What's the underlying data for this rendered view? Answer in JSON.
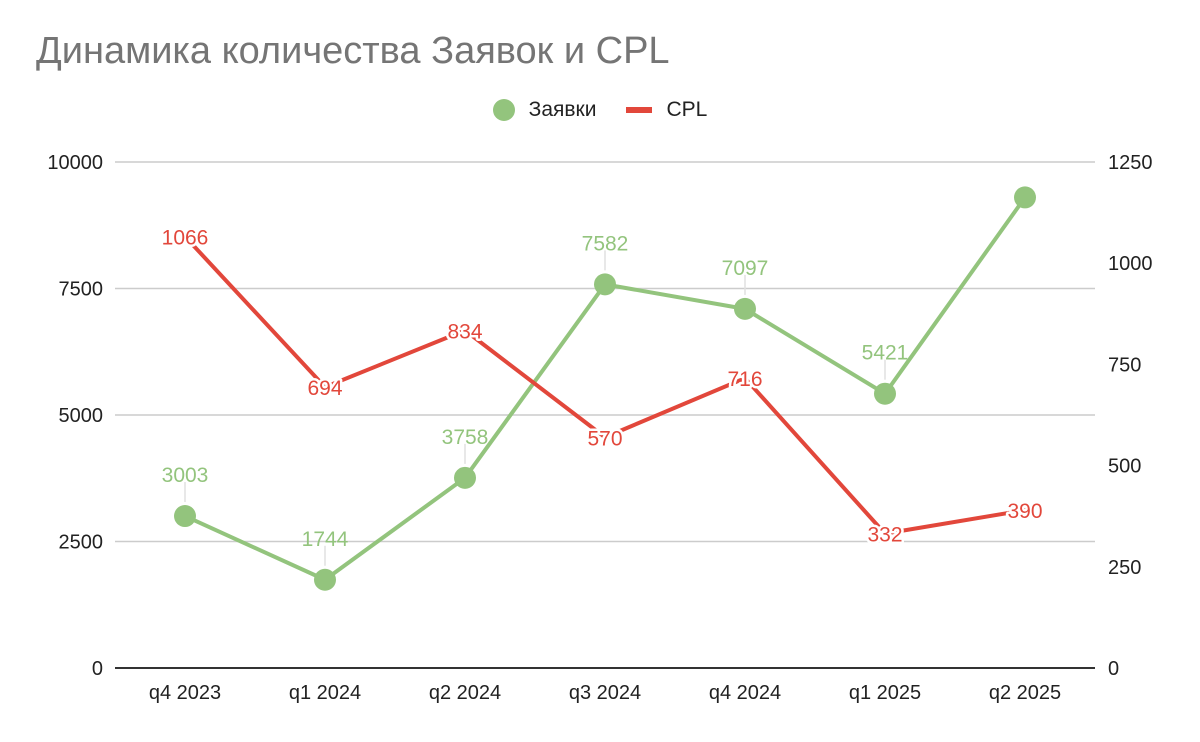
{
  "chart_data": {
    "type": "line",
    "title": "Динамика количества Заявок и CPL",
    "categories": [
      "q4 2023",
      "q1 2024",
      "q2 2024",
      "q3 2024",
      "q4 2024",
      "q1 2025",
      "q2 2025"
    ],
    "series": [
      {
        "name": "Заявки",
        "axis": "left",
        "color": "#93c47d",
        "markers": true,
        "values": [
          3003,
          1744,
          3758,
          7582,
          7097,
          5421,
          9300
        ],
        "data_labels": [
          "3003",
          "1744",
          "3758",
          "7582",
          "7097",
          "5421",
          null
        ]
      },
      {
        "name": "CPL",
        "axis": "right",
        "color": "#e2473b",
        "markers": false,
        "values": [
          1066,
          694,
          834,
          570,
          716,
          332,
          390
        ],
        "data_labels": [
          "1066",
          "694",
          "834",
          "570",
          "716",
          "332",
          "390"
        ]
      }
    ],
    "y_left": {
      "min": 0,
      "max": 10000,
      "ticks": [
        "0",
        "2500",
        "5000",
        "7500",
        "10000"
      ]
    },
    "y_right": {
      "min": 0,
      "max": 1250,
      "ticks": [
        "0",
        "250",
        "500",
        "750",
        "1000",
        "1250"
      ]
    },
    "grid": true,
    "legend_position": "top-center",
    "title_color": "#757575",
    "grid_color": "#cccccc",
    "axis_color": "#333333"
  }
}
